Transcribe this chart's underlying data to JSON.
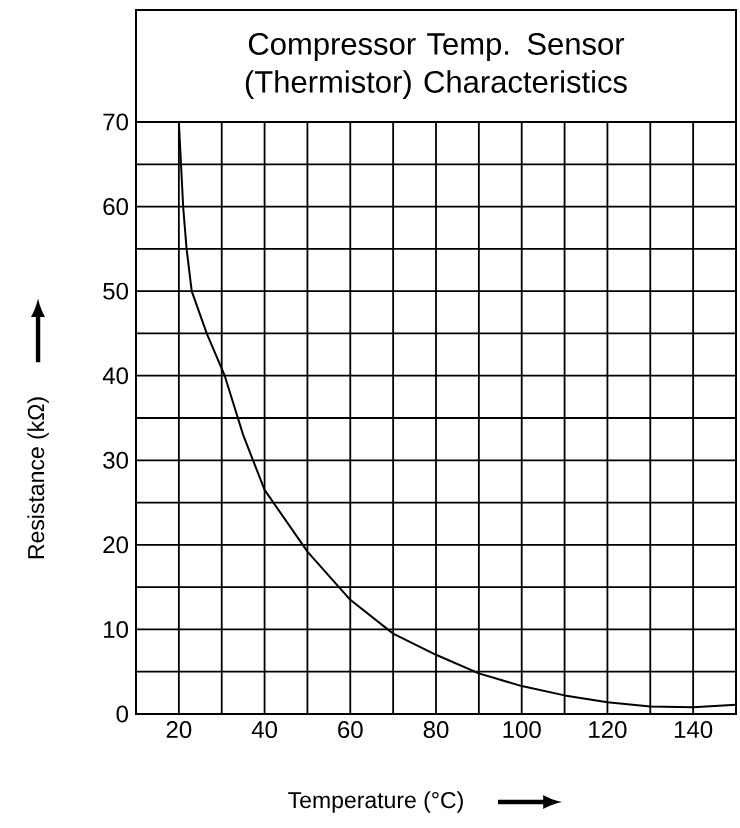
{
  "chart_data": {
    "type": "line",
    "title": "Compressor Temp. Sensor (Thermistor) Characteristics",
    "xlabel": "Temperature (°C)",
    "ylabel": "Resistance (kΩ)",
    "series": [
      {
        "color": "#000000",
        "x": [
          20,
          20.5,
          21,
          21.8,
          23,
          26.5,
          30.7,
          35,
          40,
          50,
          60,
          70,
          80,
          90,
          100,
          110,
          120,
          130,
          140,
          150
        ],
        "values": [
          70,
          65,
          60,
          55,
          50,
          45,
          40,
          33,
          26.5,
          19.2,
          13.5,
          9.5,
          7,
          4.8,
          3.3,
          2.2,
          1.4,
          0.9,
          0.8,
          1.1
        ]
      }
    ],
    "xlim": [
      10,
      150
    ],
    "ylim": [
      0,
      70
    ],
    "xticks": [
      {
        "value": 10,
        "label": null
      },
      20,
      {
        "value": 30,
        "label": null
      },
      40,
      {
        "value": 50,
        "label": null
      },
      60,
      {
        "value": 70,
        "label": null
      },
      80,
      {
        "value": 90,
        "label": null
      },
      100,
      {
        "value": 110,
        "label": null
      },
      120,
      {
        "value": 130,
        "label": null
      },
      140,
      {
        "value": 150,
        "label": null
      }
    ],
    "yticks": [
      0,
      {
        "value": 5,
        "label": null
      },
      10,
      {
        "value": 15,
        "label": null
      },
      20,
      {
        "value": 25,
        "label": null
      },
      30,
      {
        "value": 35,
        "label": null
      },
      40,
      {
        "value": 45,
        "label": null
      },
      50,
      {
        "value": 55,
        "label": null
      },
      60,
      {
        "value": 65,
        "label": null
      },
      70
    ],
    "grid": true,
    "marker": "none",
    "line_style": "solid"
  }
}
